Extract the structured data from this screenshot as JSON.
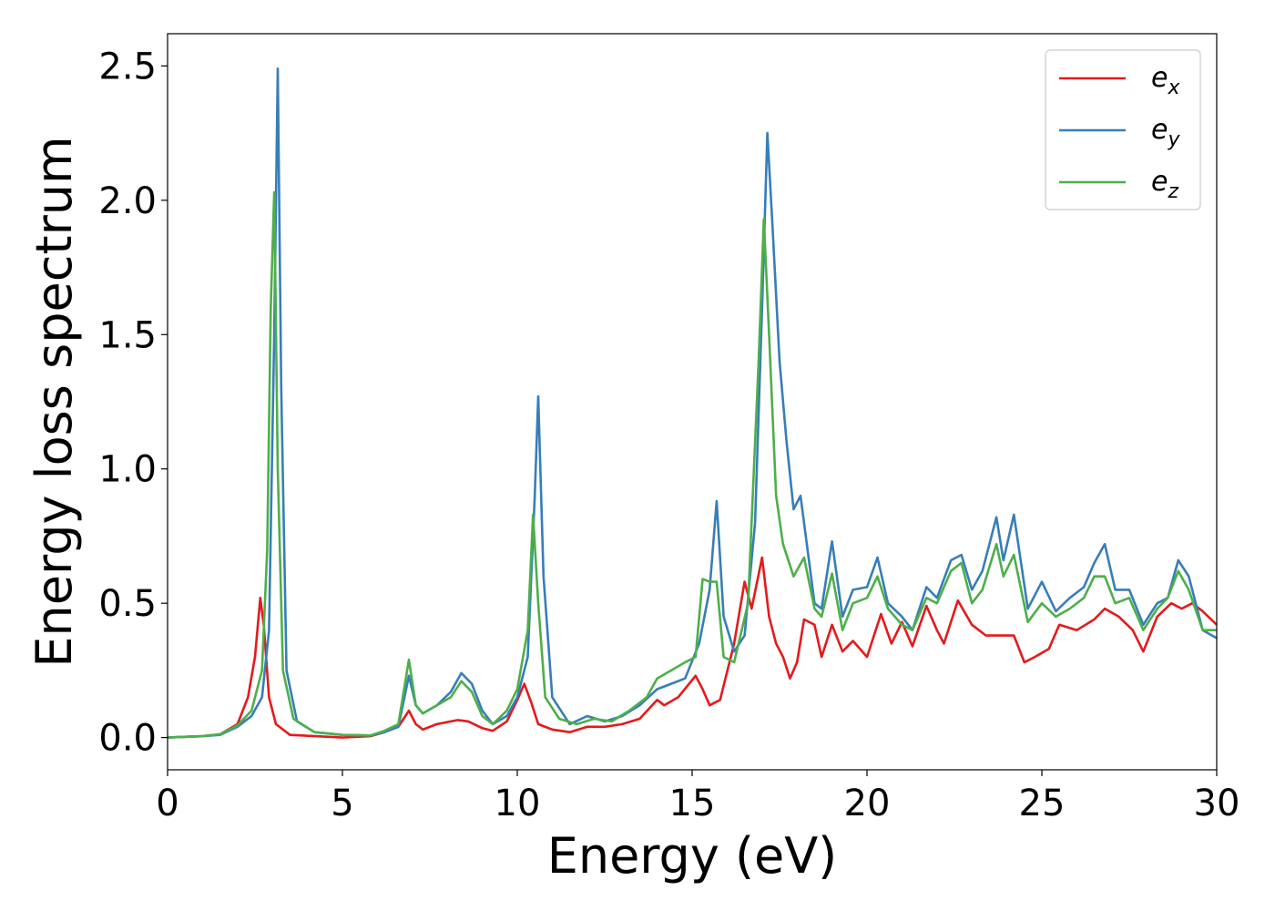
{
  "chart_data": {
    "type": "line",
    "xlabel": "Energy (eV)",
    "ylabel": "Energy loss spectrum",
    "xlim": [
      0,
      30
    ],
    "ylim": [
      -0.12,
      2.62
    ],
    "xticks": [
      "0",
      "5",
      "10",
      "15",
      "20",
      "25",
      "30"
    ],
    "yticks": [
      "0.0",
      "0.5",
      "1.0",
      "1.5",
      "2.0",
      "2.5"
    ],
    "xtick_values": [
      0,
      5,
      10,
      15,
      20,
      25,
      30
    ],
    "ytick_values": [
      0.0,
      0.5,
      1.0,
      1.5,
      2.0,
      2.5
    ],
    "grid": false,
    "legend_position": "top-right",
    "series": [
      {
        "name": "e_x",
        "base": "e",
        "sub": "x",
        "color": "#e41a1c",
        "points": [
          [
            0,
            0
          ],
          [
            1,
            0.005
          ],
          [
            1.5,
            0.012
          ],
          [
            2,
            0.05
          ],
          [
            2.3,
            0.15
          ],
          [
            2.5,
            0.3
          ],
          [
            2.65,
            0.52
          ],
          [
            2.75,
            0.42
          ],
          [
            2.9,
            0.15
          ],
          [
            3.1,
            0.05
          ],
          [
            3.5,
            0.01
          ],
          [
            5,
            0
          ],
          [
            5.8,
            0.005
          ],
          [
            6.2,
            0.02
          ],
          [
            6.6,
            0.04
          ],
          [
            6.9,
            0.1
          ],
          [
            7.1,
            0.05
          ],
          [
            7.3,
            0.03
          ],
          [
            7.7,
            0.05
          ],
          [
            8.3,
            0.065
          ],
          [
            8.6,
            0.06
          ],
          [
            9,
            0.035
          ],
          [
            9.3,
            0.025
          ],
          [
            9.7,
            0.06
          ],
          [
            10,
            0.14
          ],
          [
            10.2,
            0.2
          ],
          [
            10.4,
            0.13
          ],
          [
            10.6,
            0.05
          ],
          [
            11,
            0.03
          ],
          [
            11.5,
            0.02
          ],
          [
            12,
            0.04
          ],
          [
            12.5,
            0.04
          ],
          [
            13,
            0.05
          ],
          [
            13.5,
            0.07
          ],
          [
            14,
            0.14
          ],
          [
            14.2,
            0.12
          ],
          [
            14.6,
            0.15
          ],
          [
            15.1,
            0.23
          ],
          [
            15.3,
            0.18
          ],
          [
            15.5,
            0.12
          ],
          [
            15.8,
            0.14
          ],
          [
            16.2,
            0.35
          ],
          [
            16.5,
            0.58
          ],
          [
            16.7,
            0.48
          ],
          [
            17,
            0.67
          ],
          [
            17.2,
            0.45
          ],
          [
            17.4,
            0.35
          ],
          [
            17.6,
            0.3
          ],
          [
            17.8,
            0.22
          ],
          [
            18,
            0.28
          ],
          [
            18.2,
            0.44
          ],
          [
            18.5,
            0.42
          ],
          [
            18.7,
            0.3
          ],
          [
            19,
            0.42
          ],
          [
            19.3,
            0.32
          ],
          [
            19.6,
            0.36
          ],
          [
            20,
            0.3
          ],
          [
            20.4,
            0.46
          ],
          [
            20.7,
            0.35
          ],
          [
            21,
            0.43
          ],
          [
            21.3,
            0.34
          ],
          [
            21.7,
            0.49
          ],
          [
            22,
            0.4
          ],
          [
            22.2,
            0.35
          ],
          [
            22.6,
            0.51
          ],
          [
            23,
            0.42
          ],
          [
            23.4,
            0.38
          ],
          [
            23.8,
            0.38
          ],
          [
            24.2,
            0.38
          ],
          [
            24.5,
            0.28
          ],
          [
            24.8,
            0.3
          ],
          [
            25.2,
            0.33
          ],
          [
            25.5,
            0.42
          ],
          [
            26,
            0.4
          ],
          [
            26.5,
            0.44
          ],
          [
            26.8,
            0.48
          ],
          [
            27.2,
            0.45
          ],
          [
            27.6,
            0.4
          ],
          [
            27.9,
            0.32
          ],
          [
            28.3,
            0.45
          ],
          [
            28.7,
            0.5
          ],
          [
            29,
            0.48
          ],
          [
            29.3,
            0.5
          ],
          [
            29.6,
            0.47
          ],
          [
            30,
            0.42
          ]
        ]
      },
      {
        "name": "e_y",
        "base": "e",
        "sub": "y",
        "color": "#377eb8",
        "points": [
          [
            0,
            0
          ],
          [
            1,
            0.005
          ],
          [
            1.5,
            0.01
          ],
          [
            2,
            0.04
          ],
          [
            2.4,
            0.08
          ],
          [
            2.7,
            0.15
          ],
          [
            2.9,
            0.4
          ],
          [
            3.05,
            1.5
          ],
          [
            3.15,
            2.49
          ],
          [
            3.25,
            1.3
          ],
          [
            3.4,
            0.25
          ],
          [
            3.7,
            0.06
          ],
          [
            4.2,
            0.02
          ],
          [
            5,
            0.01
          ],
          [
            5.8,
            0.008
          ],
          [
            6.2,
            0.02
          ],
          [
            6.6,
            0.04
          ],
          [
            6.9,
            0.23
          ],
          [
            7.1,
            0.12
          ],
          [
            7.3,
            0.09
          ],
          [
            7.7,
            0.12
          ],
          [
            8.1,
            0.17
          ],
          [
            8.4,
            0.24
          ],
          [
            8.7,
            0.2
          ],
          [
            9,
            0.1
          ],
          [
            9.3,
            0.05
          ],
          [
            9.7,
            0.08
          ],
          [
            10,
            0.15
          ],
          [
            10.3,
            0.3
          ],
          [
            10.5,
            0.9
          ],
          [
            10.6,
            1.27
          ],
          [
            10.75,
            0.6
          ],
          [
            11,
            0.15
          ],
          [
            11.5,
            0.05
          ],
          [
            12,
            0.08
          ],
          [
            12.5,
            0.06
          ],
          [
            13,
            0.08
          ],
          [
            13.5,
            0.12
          ],
          [
            14,
            0.18
          ],
          [
            14.4,
            0.2
          ],
          [
            14.8,
            0.22
          ],
          [
            15.2,
            0.35
          ],
          [
            15.5,
            0.55
          ],
          [
            15.7,
            0.88
          ],
          [
            15.9,
            0.45
          ],
          [
            16.2,
            0.32
          ],
          [
            16.5,
            0.38
          ],
          [
            16.8,
            0.8
          ],
          [
            17,
            1.6
          ],
          [
            17.15,
            2.25
          ],
          [
            17.3,
            1.9
          ],
          [
            17.5,
            1.4
          ],
          [
            17.7,
            1.1
          ],
          [
            17.9,
            0.85
          ],
          [
            18.1,
            0.9
          ],
          [
            18.3,
            0.7
          ],
          [
            18.5,
            0.5
          ],
          [
            18.7,
            0.48
          ],
          [
            19,
            0.73
          ],
          [
            19.3,
            0.45
          ],
          [
            19.6,
            0.55
          ],
          [
            20,
            0.56
          ],
          [
            20.3,
            0.67
          ],
          [
            20.6,
            0.5
          ],
          [
            21,
            0.45
          ],
          [
            21.3,
            0.4
          ],
          [
            21.7,
            0.56
          ],
          [
            22,
            0.52
          ],
          [
            22.4,
            0.66
          ],
          [
            22.7,
            0.68
          ],
          [
            23,
            0.55
          ],
          [
            23.3,
            0.62
          ],
          [
            23.7,
            0.82
          ],
          [
            23.9,
            0.66
          ],
          [
            24.2,
            0.83
          ],
          [
            24.6,
            0.48
          ],
          [
            25,
            0.58
          ],
          [
            25.4,
            0.47
          ],
          [
            25.8,
            0.52
          ],
          [
            26.2,
            0.56
          ],
          [
            26.5,
            0.65
          ],
          [
            26.8,
            0.72
          ],
          [
            27.1,
            0.55
          ],
          [
            27.5,
            0.55
          ],
          [
            27.9,
            0.42
          ],
          [
            28.3,
            0.5
          ],
          [
            28.6,
            0.52
          ],
          [
            28.9,
            0.66
          ],
          [
            29.2,
            0.6
          ],
          [
            29.6,
            0.4
          ],
          [
            30,
            0.37
          ]
        ]
      },
      {
        "name": "e_z",
        "base": "e",
        "sub": "z",
        "color": "#4daf4a",
        "points": [
          [
            0,
            0
          ],
          [
            1,
            0.005
          ],
          [
            1.5,
            0.012
          ],
          [
            2,
            0.045
          ],
          [
            2.4,
            0.1
          ],
          [
            2.7,
            0.25
          ],
          [
            2.85,
            0.7
          ],
          [
            2.95,
            1.6
          ],
          [
            3.05,
            2.03
          ],
          [
            3.15,
            1.0
          ],
          [
            3.3,
            0.25
          ],
          [
            3.6,
            0.07
          ],
          [
            4.2,
            0.02
          ],
          [
            5,
            0.01
          ],
          [
            5.8,
            0.008
          ],
          [
            6.2,
            0.025
          ],
          [
            6.6,
            0.05
          ],
          [
            6.9,
            0.29
          ],
          [
            7.1,
            0.12
          ],
          [
            7.3,
            0.09
          ],
          [
            7.7,
            0.12
          ],
          [
            8.1,
            0.15
          ],
          [
            8.4,
            0.21
          ],
          [
            8.7,
            0.17
          ],
          [
            9,
            0.08
          ],
          [
            9.3,
            0.05
          ],
          [
            9.7,
            0.1
          ],
          [
            10,
            0.18
          ],
          [
            10.3,
            0.4
          ],
          [
            10.45,
            0.83
          ],
          [
            10.6,
            0.5
          ],
          [
            10.8,
            0.15
          ],
          [
            11.2,
            0.07
          ],
          [
            11.7,
            0.05
          ],
          [
            12.2,
            0.07
          ],
          [
            12.7,
            0.06
          ],
          [
            13.2,
            0.1
          ],
          [
            13.7,
            0.15
          ],
          [
            14,
            0.22
          ],
          [
            14.4,
            0.25
          ],
          [
            14.8,
            0.28
          ],
          [
            15.1,
            0.3
          ],
          [
            15.3,
            0.59
          ],
          [
            15.5,
            0.58
          ],
          [
            15.7,
            0.58
          ],
          [
            15.9,
            0.3
          ],
          [
            16.2,
            0.28
          ],
          [
            16.6,
            0.5
          ],
          [
            16.9,
            1.4
          ],
          [
            17.05,
            1.93
          ],
          [
            17.2,
            1.5
          ],
          [
            17.4,
            0.9
          ],
          [
            17.6,
            0.72
          ],
          [
            17.9,
            0.6
          ],
          [
            18.2,
            0.67
          ],
          [
            18.5,
            0.48
          ],
          [
            18.7,
            0.45
          ],
          [
            19,
            0.61
          ],
          [
            19.3,
            0.4
          ],
          [
            19.6,
            0.5
          ],
          [
            20,
            0.52
          ],
          [
            20.3,
            0.6
          ],
          [
            20.6,
            0.48
          ],
          [
            21,
            0.42
          ],
          [
            21.3,
            0.4
          ],
          [
            21.7,
            0.52
          ],
          [
            22,
            0.5
          ],
          [
            22.4,
            0.62
          ],
          [
            22.7,
            0.65
          ],
          [
            23,
            0.5
          ],
          [
            23.3,
            0.55
          ],
          [
            23.7,
            0.72
          ],
          [
            23.9,
            0.6
          ],
          [
            24.2,
            0.68
          ],
          [
            24.6,
            0.43
          ],
          [
            25,
            0.5
          ],
          [
            25.4,
            0.45
          ],
          [
            25.8,
            0.48
          ],
          [
            26.2,
            0.52
          ],
          [
            26.5,
            0.6
          ],
          [
            26.8,
            0.6
          ],
          [
            27.1,
            0.5
          ],
          [
            27.5,
            0.52
          ],
          [
            27.9,
            0.4
          ],
          [
            28.3,
            0.48
          ],
          [
            28.6,
            0.52
          ],
          [
            28.9,
            0.62
          ],
          [
            29.2,
            0.55
          ],
          [
            29.6,
            0.4
          ],
          [
            30,
            0.4
          ]
        ]
      }
    ]
  }
}
